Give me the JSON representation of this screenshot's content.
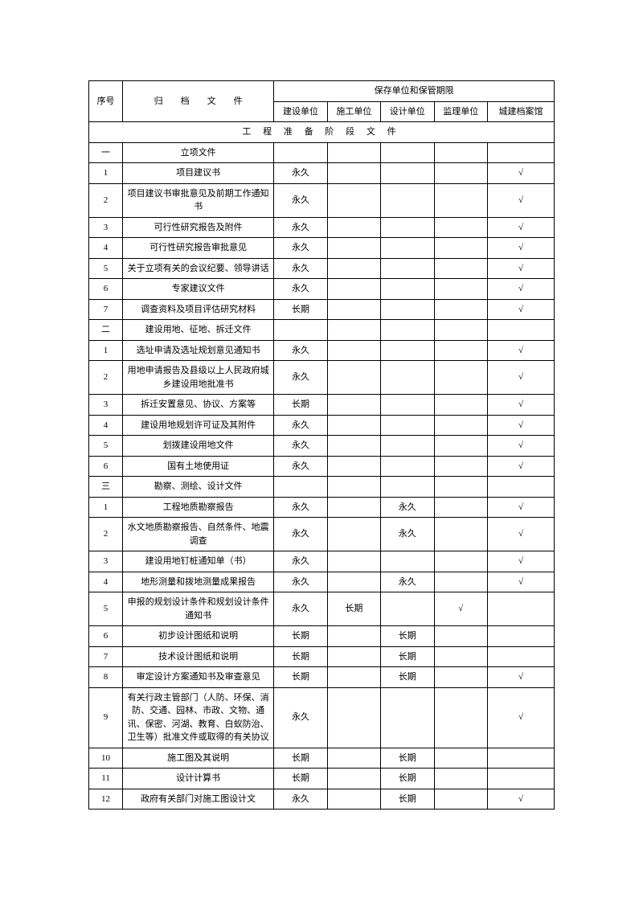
{
  "headers": {
    "seq": "序号",
    "file": "归　　档　　文　　件",
    "storage_header": "保存单位和保管期限",
    "units": {
      "construction": "建设单位",
      "builder": "施工单位",
      "design": "设计单位",
      "supervision": "监理单位",
      "archive": "城建档案馆"
    }
  },
  "section_title": "工 程 准 备 阶 段 文 件",
  "rows": [
    {
      "seq": "一",
      "file": "立项文件",
      "c": "",
      "b": "",
      "d": "",
      "s": "",
      "a": ""
    },
    {
      "seq": "1",
      "file": "项目建议书",
      "c": "永久",
      "b": "",
      "d": "",
      "s": "",
      "a": "√"
    },
    {
      "seq": "2",
      "file": "项目建议书审批意见及前期工作通知书",
      "c": "永久",
      "b": "",
      "d": "",
      "s": "",
      "a": "√"
    },
    {
      "seq": "3",
      "file": "可行性研究报告及附件",
      "c": "永久",
      "b": "",
      "d": "",
      "s": "",
      "a": "√"
    },
    {
      "seq": "4",
      "file": "可行性研究报告审批意见",
      "c": "永久",
      "b": "",
      "d": "",
      "s": "",
      "a": "√"
    },
    {
      "seq": "5",
      "file": "关于立项有关的会议纪要、领导讲话",
      "c": "永久",
      "b": "",
      "d": "",
      "s": "",
      "a": "√"
    },
    {
      "seq": "6",
      "file": "专家建议文件",
      "c": "永久",
      "b": "",
      "d": "",
      "s": "",
      "a": "√"
    },
    {
      "seq": "7",
      "file": "调查资料及项目评估研究材料",
      "c": "长期",
      "b": "",
      "d": "",
      "s": "",
      "a": "√"
    },
    {
      "seq": "二",
      "file": "建设用地、征地、拆迁文件",
      "c": "",
      "b": "",
      "d": "",
      "s": "",
      "a": ""
    },
    {
      "seq": "1",
      "file": "选址申请及选址规划意见通知书",
      "c": "永久",
      "b": "",
      "d": "",
      "s": "",
      "a": "√"
    },
    {
      "seq": "2",
      "file": "用地申请报告及县级以上人民政府城乡建设用地批准书",
      "c": "永久",
      "b": "",
      "d": "",
      "s": "",
      "a": "√"
    },
    {
      "seq": "3",
      "file": "拆迁安置意见、协议、方案等",
      "c": "长期",
      "b": "",
      "d": "",
      "s": "",
      "a": "√"
    },
    {
      "seq": "4",
      "file": "建设用地规划许可证及其附件",
      "c": "永久",
      "b": "",
      "d": "",
      "s": "",
      "a": "√"
    },
    {
      "seq": "5",
      "file": "划拨建设用地文件",
      "c": "永久",
      "b": "",
      "d": "",
      "s": "",
      "a": "√"
    },
    {
      "seq": "6",
      "file": "国有土地使用证",
      "c": "永久",
      "b": "",
      "d": "",
      "s": "",
      "a": "√"
    },
    {
      "seq": "三",
      "file": "勘察、测绘、设计文件",
      "c": "",
      "b": "",
      "d": "",
      "s": "",
      "a": ""
    },
    {
      "seq": "1",
      "file": "工程地质勘察报告",
      "c": "永久",
      "b": "",
      "d": "永久",
      "s": "",
      "a": "√"
    },
    {
      "seq": "2",
      "file": "水文地质勘察报告、自然条件、地震调查",
      "c": "永久",
      "b": "",
      "d": "永久",
      "s": "",
      "a": "√"
    },
    {
      "seq": "3",
      "file": "建设用地钉桩通知单（书）",
      "c": "永久",
      "b": "",
      "d": "",
      "s": "",
      "a": "√"
    },
    {
      "seq": "4",
      "file": "地形测量和拨地测量成果报告",
      "c": "永久",
      "b": "",
      "d": "永久",
      "s": "",
      "a": "√"
    },
    {
      "seq": "5",
      "file": "申报的规划设计条件和规划设计条件通知书",
      "c": "永久",
      "b": "长期",
      "d": "",
      "s": "√",
      "a": ""
    },
    {
      "seq": "6",
      "file": "初步设计图纸和说明",
      "c": "长期",
      "b": "",
      "d": "长期",
      "s": "",
      "a": ""
    },
    {
      "seq": "7",
      "file": "技术设计图纸和说明",
      "c": "长期",
      "b": "",
      "d": "长期",
      "s": "",
      "a": ""
    },
    {
      "seq": "8",
      "file": "审定设计方案通知书及审查意见",
      "c": "长期",
      "b": "",
      "d": "长期",
      "s": "",
      "a": "√"
    },
    {
      "seq": "9",
      "file": "有关行政主管部门（人防、环保、消防、交通、园林、市政、文物、通讯、保密、河湖、教育、白蚁防治、卫生等）批准文件或取得的有关协议",
      "c": "永久",
      "b": "",
      "d": "",
      "s": "",
      "a": "√"
    },
    {
      "seq": "10",
      "file": "施工图及其说明",
      "c": "长期",
      "b": "",
      "d": "长期",
      "s": "",
      "a": ""
    },
    {
      "seq": "11",
      "file": "设计计算书",
      "c": "长期",
      "b": "",
      "d": "长期",
      "s": "",
      "a": ""
    },
    {
      "seq": "12",
      "file": "政府有关部门对施工图设计文",
      "c": "永久",
      "b": "",
      "d": "长期",
      "s": "",
      "a": "√"
    }
  ]
}
